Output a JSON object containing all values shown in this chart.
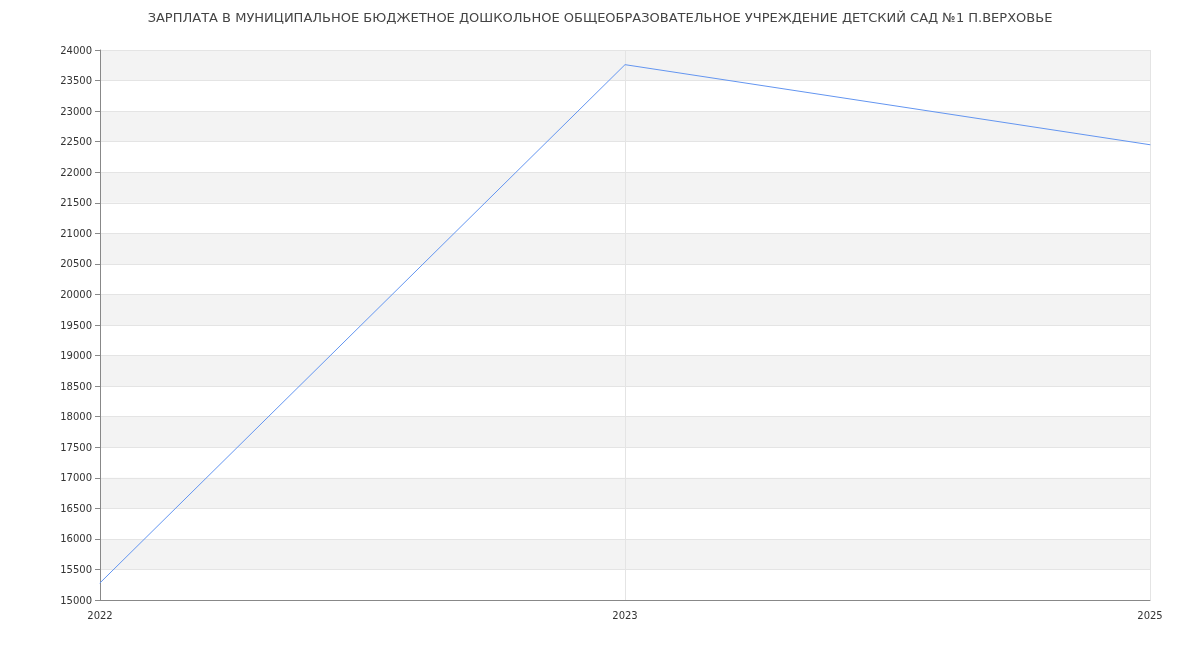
{
  "chart_data": {
    "type": "line",
    "title": "ЗАРПЛАТА В МУНИЦИПАЛЬНОЕ БЮДЖЕТНОЕ ДОШКОЛЬНОЕ ОБЩЕОБРАЗОВАТЕЛЬНОЕ УЧРЕЖДЕНИЕ ДЕТСКИЙ САД №1 П.ВЕРХОВЬЕ",
    "categories": [
      "2022",
      "2023",
      "2025"
    ],
    "series": [
      {
        "color": "#6395f0",
        "values": [
          15280,
          23760,
          22450
        ]
      }
    ],
    "ylim": [
      15000,
      24000
    ],
    "yticks": [
      15000,
      15500,
      16000,
      16500,
      17000,
      17500,
      18000,
      18500,
      19000,
      19500,
      20000,
      20500,
      21000,
      21500,
      22000,
      22500,
      23000,
      23500,
      24000
    ],
    "grid": true,
    "marker": "none"
  }
}
